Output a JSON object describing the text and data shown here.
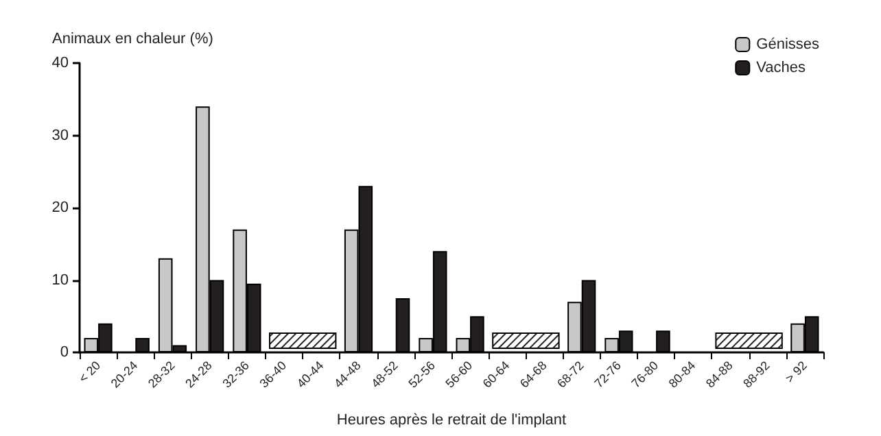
{
  "chart_data": {
    "type": "bar",
    "xlabel": "Heures après le retrait de l'implant",
    "ylabel": "Animaux en chaleur (%)",
    "categories": [
      "< 20",
      "20-24",
      "28-32",
      "24-28",
      "32-36",
      "36-40",
      "40-44",
      "44-48",
      "48-52",
      "52-56",
      "56-60",
      "60-64",
      "64-68",
      "68-72",
      "72-76",
      "76-80",
      "80-84",
      "84-88",
      "88-92",
      "> 92"
    ],
    "series": [
      {
        "name": "Génisses",
        "color": "#c8c8c8",
        "values": [
          2,
          0,
          13,
          34,
          17,
          null,
          null,
          17,
          0,
          2,
          2,
          null,
          null,
          7,
          2,
          0,
          0,
          null,
          null,
          4
        ]
      },
      {
        "name": "Vaches",
        "color": "#231f20",
        "values": [
          4,
          2,
          1,
          10,
          9.5,
          null,
          null,
          23,
          7.5,
          14,
          5,
          null,
          null,
          10,
          3,
          3,
          0,
          null,
          null,
          5
        ]
      }
    ],
    "bands": [
      {
        "axis": "x",
        "from": "36-40",
        "to": "40-44"
      },
      {
        "axis": "x",
        "from": "60-64",
        "to": "64-68"
      },
      {
        "axis": "x",
        "from": "84-88",
        "to": "88-92"
      }
    ],
    "ylim": [
      0,
      40
    ],
    "yticks": [
      0,
      10,
      20,
      30,
      40
    ],
    "grid": false,
    "legend": "top right"
  }
}
